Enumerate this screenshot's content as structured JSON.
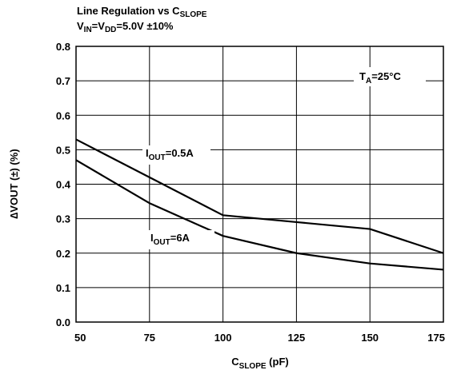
{
  "chart_data": {
    "type": "line",
    "title": {
      "line1": {
        "main": "Line Regulation vs C",
        "sub": "SLOPE"
      },
      "line2": {
        "p1": "V",
        "s1": "IN",
        "p2": "=V",
        "s2": "DD",
        "p3": "=5.0V ±10%"
      }
    },
    "xlabel": {
      "main": "C",
      "sub": "SLOPE",
      "rest": " (pF)"
    },
    "ylabel": "∆VOUT (±) (%)",
    "xlim": [
      50,
      175
    ],
    "ylim": [
      0,
      0.8
    ],
    "xticks": [
      50,
      75,
      100,
      125,
      150,
      175
    ],
    "yticks": [
      "0.0",
      "0.1",
      "0.2",
      "0.3",
      "0.4",
      "0.5",
      "0.6",
      "0.7",
      "0.8"
    ],
    "grid": true,
    "annotation": {
      "main": "T",
      "sub": "A",
      "rest": "=25°C"
    },
    "series": [
      {
        "name": {
          "main": "I",
          "sub": "OUT",
          "rest": "=0.5A"
        },
        "x": [
          50,
          75,
          100,
          125,
          150,
          175
        ],
        "y": [
          0.53,
          0.42,
          0.31,
          0.29,
          0.27,
          0.2
        ]
      },
      {
        "name": {
          "main": "I",
          "sub": "OUT",
          "rest": "=6A"
        },
        "x": [
          50,
          75,
          100,
          125,
          150,
          175
        ],
        "y": [
          0.47,
          0.345,
          0.25,
          0.2,
          0.17,
          0.152
        ]
      }
    ]
  }
}
